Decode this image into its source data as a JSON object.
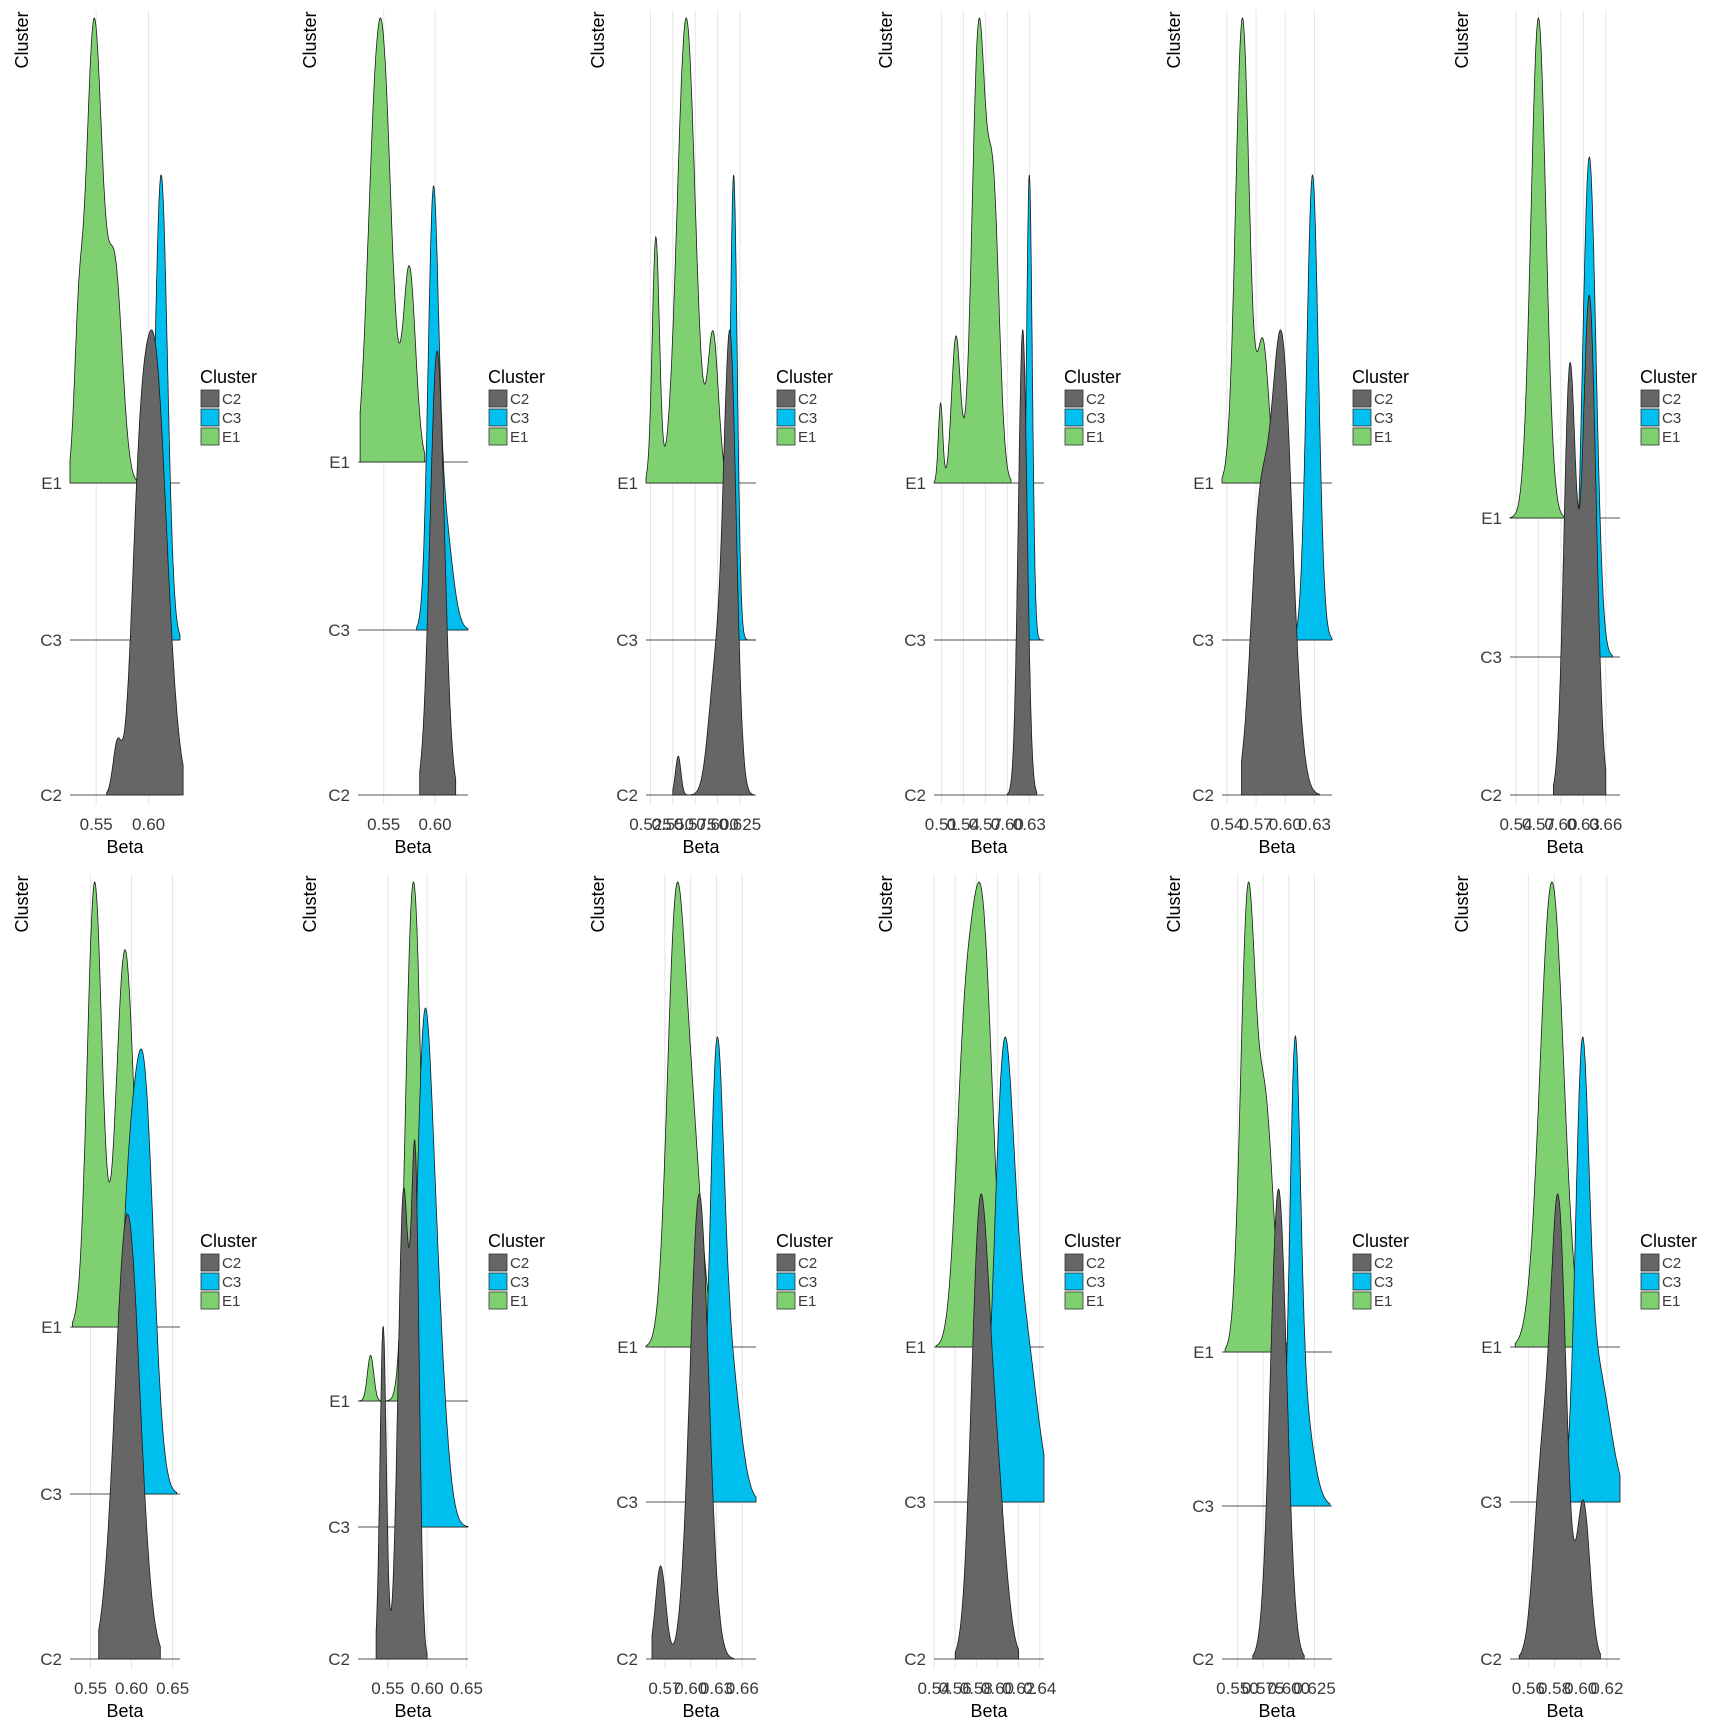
{
  "colors": {
    "C2": "#666666",
    "C3": "#00bfef",
    "E1": "#7ed071",
    "outline": "#1a1a1a",
    "grid": "#e6e6e6",
    "tick": "#3a3a3a"
  },
  "chart_data": [
    {
      "type": "ridgeline",
      "xlabel": "Beta",
      "ylabel": "Cluster",
      "xticks": [
        "0.55",
        "0.60"
      ],
      "xtick_values": [
        0.55,
        0.6
      ],
      "xlim": [
        0.525,
        0.63
      ],
      "categories": [
        "C2",
        "C3",
        "E1"
      ],
      "legend": {
        "title": "Cluster",
        "entries": [
          "C2",
          "C3",
          "E1"
        ],
        "position": "right"
      },
      "series": [
        {
          "name": "C2",
          "peaks": [
            [
              0.57,
              0.1,
              0.004
            ],
            [
              0.59,
              0.3,
              0.007
            ],
            [
              0.605,
              0.95,
              0.012
            ]
          ],
          "range": [
            0.56,
            0.633
          ]
        },
        {
          "name": "C3",
          "peaks": [
            [
              0.612,
              1.0,
              0.006
            ]
          ],
          "range": [
            0.595,
            0.63
          ]
        },
        {
          "name": "E1",
          "peaks": [
            [
              0.533,
              0.25,
              0.004
            ],
            [
              0.548,
              1.0,
              0.008
            ],
            [
              0.568,
              0.45,
              0.007
            ]
          ],
          "range": [
            0.525,
            0.59
          ]
        }
      ]
    },
    {
      "type": "ridgeline",
      "xlabel": "Beta",
      "ylabel": "Cluster",
      "xticks": [
        "0.55",
        "0.60"
      ],
      "xtick_values": [
        0.55,
        0.6
      ],
      "xlim": [
        0.525,
        0.632
      ],
      "categories": [
        "C2",
        "C3",
        "E1"
      ],
      "legend": {
        "title": "Cluster",
        "entries": [
          "C2",
          "C3",
          "E1"
        ],
        "position": "right"
      },
      "series": [
        {
          "name": "C2",
          "peaks": [
            [
              0.602,
              1.0,
              0.007
            ]
          ],
          "range": [
            0.585,
            0.62
          ]
        },
        {
          "name": "C3",
          "peaks": [
            [
              0.598,
              1.0,
              0.005
            ],
            [
              0.608,
              0.3,
              0.008
            ]
          ],
          "range": [
            0.582,
            0.632
          ]
        },
        {
          "name": "E1",
          "peaks": [
            [
              0.548,
              1.0,
              0.009
            ],
            [
              0.575,
              0.45,
              0.006
            ],
            [
              0.537,
              0.2,
              0.006
            ]
          ],
          "range": [
            0.527,
            0.59
          ]
        }
      ]
    },
    {
      "type": "ridgeline",
      "xlabel": "Beta",
      "ylabel": "Cluster",
      "xticks": [
        "0.525",
        "0.550",
        "0.575",
        "0.600",
        "0.625"
      ],
      "xtick_values": [
        0.525,
        0.55,
        0.575,
        0.6,
        0.625
      ],
      "xlim": [
        0.52,
        0.643
      ],
      "categories": [
        "C2",
        "C3",
        "E1"
      ],
      "legend": {
        "title": "Cluster",
        "entries": [
          "C2",
          "C3",
          "E1"
        ],
        "position": "right"
      },
      "series": [
        {
          "name": "C2",
          "peaks": [
            [
              0.556,
              0.08,
              0.003
            ],
            [
              0.598,
              0.25,
              0.008
            ],
            [
              0.614,
              0.92,
              0.007
            ]
          ],
          "range": [
            0.55,
            0.64
          ]
        },
        {
          "name": "C3",
          "peaks": [
            [
              0.618,
              1.0,
              0.004
            ]
          ],
          "range": [
            0.6,
            0.643
          ]
        },
        {
          "name": "E1",
          "peaks": [
            [
              0.531,
              0.5,
              0.004
            ],
            [
              0.565,
              0.95,
              0.01
            ],
            [
              0.595,
              0.3,
              0.006
            ]
          ],
          "range": [
            0.52,
            0.622
          ]
        }
      ]
    },
    {
      "type": "ridgeline",
      "xlabel": "Beta",
      "ylabel": "Cluster",
      "xticks": [
        "0.51",
        "0.54",
        "0.57",
        "0.60",
        "0.63"
      ],
      "xtick_values": [
        0.51,
        0.54,
        0.57,
        0.6,
        0.63
      ],
      "xlim": [
        0.5,
        0.65
      ],
      "categories": [
        "C2",
        "C3",
        "E1"
      ],
      "legend": {
        "title": "Cluster",
        "entries": [
          "C2",
          "C3",
          "E1"
        ],
        "position": "right"
      },
      "series": [
        {
          "name": "C2",
          "peaks": [
            [
              0.621,
              1.0,
              0.006
            ]
          ],
          "range": [
            0.6,
            0.64
          ]
        },
        {
          "name": "C3",
          "peaks": [
            [
              0.63,
              1.0,
              0.004
            ]
          ],
          "range": [
            0.612,
            0.65
          ]
        },
        {
          "name": "E1",
          "peaks": [
            [
              0.509,
              0.12,
              0.003
            ],
            [
              0.53,
              0.22,
              0.006
            ],
            [
              0.561,
              0.68,
              0.009
            ],
            [
              0.581,
              0.42,
              0.008
            ]
          ],
          "range": [
            0.5,
            0.605
          ]
        }
      ]
    },
    {
      "type": "ridgeline",
      "xlabel": "Beta",
      "ylabel": "Cluster",
      "xticks": [
        "0.54",
        "0.57",
        "0.60",
        "0.63"
      ],
      "xtick_values": [
        0.54,
        0.57,
        0.6,
        0.63
      ],
      "xlim": [
        0.535,
        0.648
      ],
      "categories": [
        "C2",
        "C3",
        "E1"
      ],
      "legend": {
        "title": "Cluster",
        "entries": [
          "C2",
          "C3",
          "E1"
        ],
        "position": "right"
      },
      "series": [
        {
          "name": "C2",
          "peaks": [
            [
              0.573,
              0.45,
              0.009
            ],
            [
              0.596,
              0.82,
              0.011
            ]
          ],
          "range": [
            0.555,
            0.635
          ]
        },
        {
          "name": "C3",
          "peaks": [
            [
              0.628,
              1.0,
              0.006
            ]
          ],
          "range": [
            0.61,
            0.648
          ]
        },
        {
          "name": "E1",
          "peaks": [
            [
              0.556,
              1.0,
              0.007
            ],
            [
              0.577,
              0.3,
              0.006
            ]
          ],
          "range": [
            0.535,
            0.598
          ]
        }
      ]
    },
    {
      "type": "ridgeline",
      "xlabel": "Beta",
      "ylabel": "Cluster",
      "xticks": [
        "0.54",
        "0.57",
        "0.60",
        "0.63",
        "0.66"
      ],
      "xtick_values": [
        0.54,
        0.57,
        0.6,
        0.63,
        0.66
      ],
      "xlim": [
        0.532,
        0.679
      ],
      "categories": [
        "C2",
        "C3",
        "E1"
      ],
      "legend": {
        "title": "Cluster",
        "entries": [
          "C2",
          "C3",
          "E1"
        ],
        "position": "right"
      },
      "series": [
        {
          "name": "C2",
          "peaks": [
            [
              0.612,
              0.75,
              0.008
            ],
            [
              0.638,
              0.88,
              0.009
            ]
          ],
          "range": [
            0.59,
            0.66
          ]
        },
        {
          "name": "C3",
          "peaks": [
            [
              0.638,
              1.0,
              0.009
            ]
          ],
          "range": [
            0.61,
            0.669
          ]
        },
        {
          "name": "E1",
          "peaks": [
            [
              0.57,
              1.0,
              0.01
            ]
          ],
          "range": [
            0.532,
            0.61
          ]
        }
      ]
    },
    {
      "type": "ridgeline",
      "xlabel": "Beta",
      "ylabel": "Cluster",
      "xticks": [
        "0.55",
        "0.60",
        "0.65"
      ],
      "xtick_values": [
        0.55,
        0.6,
        0.65
      ],
      "xlim": [
        0.525,
        0.659
      ],
      "categories": [
        "C2",
        "C3",
        "E1"
      ],
      "legend": {
        "title": "Cluster",
        "entries": [
          "C2",
          "C3",
          "E1"
        ],
        "position": "right"
      },
      "series": [
        {
          "name": "C2",
          "peaks": [
            [
              0.595,
              1.0,
              0.015
            ]
          ],
          "range": [
            0.56,
            0.635
          ]
        },
        {
          "name": "C3",
          "peaks": [
            [
              0.615,
              1.0,
              0.012
            ],
            [
              0.595,
              0.55,
              0.01
            ]
          ],
          "range": [
            0.58,
            0.655
          ]
        },
        {
          "name": "E1",
          "peaks": [
            [
              0.555,
              1.0,
              0.009
            ],
            [
              0.592,
              0.85,
              0.011
            ]
          ],
          "range": [
            0.528,
            0.627
          ]
        }
      ]
    },
    {
      "type": "ridgeline",
      "xlabel": "Beta",
      "ylabel": "Cluster",
      "xticks": [
        "0.55",
        "0.60",
        "0.65"
      ],
      "xtick_values": [
        0.55,
        0.6,
        0.65
      ],
      "xlim": [
        0.512,
        0.652
      ],
      "categories": [
        "C2",
        "C3",
        "E1"
      ],
      "legend": {
        "title": "Cluster",
        "entries": [
          "C2",
          "C3",
          "E1"
        ],
        "position": "right"
      },
      "series": [
        {
          "name": "C2",
          "peaks": [
            [
              0.544,
              0.5,
              0.004
            ],
            [
              0.57,
              0.7,
              0.007
            ],
            [
              0.585,
              0.7,
              0.005
            ]
          ],
          "range": [
            0.535,
            0.6
          ]
        },
        {
          "name": "C3",
          "peaks": [
            [
              0.595,
              1.0,
              0.01
            ],
            [
              0.61,
              0.55,
              0.012
            ]
          ],
          "range": [
            0.575,
            0.652
          ]
        },
        {
          "name": "E1",
          "peaks": [
            [
              0.528,
              0.1,
              0.004
            ],
            [
              0.58,
              1.0,
              0.008
            ],
            [
              0.59,
              0.4,
              0.006
            ]
          ],
          "range": [
            0.512,
            0.6
          ]
        }
      ]
    },
    {
      "type": "ridgeline",
      "xlabel": "Beta",
      "ylabel": "Cluster",
      "xticks": [
        "0.57",
        "0.60",
        "0.63",
        "0.66"
      ],
      "xtick_values": [
        0.57,
        0.6,
        0.63,
        0.66
      ],
      "xlim": [
        0.548,
        0.676
      ],
      "categories": [
        "C2",
        "C3",
        "E1"
      ],
      "legend": {
        "title": "Cluster",
        "entries": [
          "C2",
          "C3",
          "E1"
        ],
        "position": "right"
      },
      "series": [
        {
          "name": "C2",
          "peaks": [
            [
              0.565,
              0.2,
              0.006
            ],
            [
              0.61,
              1.0,
              0.011
            ]
          ],
          "range": [
            0.555,
            0.65
          ]
        },
        {
          "name": "C3",
          "peaks": [
            [
              0.63,
              1.0,
              0.008
            ],
            [
              0.645,
              0.35,
              0.012
            ]
          ],
          "range": [
            0.6,
            0.676
          ]
        },
        {
          "name": "E1",
          "peaks": [
            [
              0.582,
              0.95,
              0.01
            ],
            [
              0.6,
              0.55,
              0.012
            ]
          ],
          "range": [
            0.548,
            0.63
          ]
        }
      ]
    },
    {
      "type": "ridgeline",
      "xlabel": "Beta",
      "ylabel": "Cluster",
      "xticks": [
        "0.54",
        "0.56",
        "0.58",
        "0.60",
        "0.62",
        "0.64"
      ],
      "xtick_values": [
        0.54,
        0.56,
        0.58,
        0.6,
        0.62,
        0.64
      ],
      "xlim": [
        0.54,
        0.644
      ],
      "categories": [
        "C2",
        "C3",
        "E1"
      ],
      "legend": {
        "title": "Cluster",
        "entries": [
          "C2",
          "C3",
          "E1"
        ],
        "position": "right"
      },
      "series": [
        {
          "name": "C2",
          "peaks": [
            [
              0.583,
              1.0,
              0.008
            ],
            [
              0.598,
              0.45,
              0.009
            ]
          ],
          "range": [
            0.56,
            0.62
          ]
        },
        {
          "name": "C3",
          "peaks": [
            [
              0.606,
              1.0,
              0.009
            ],
            [
              0.625,
              0.4,
              0.012
            ]
          ],
          "range": [
            0.58,
            0.644
          ]
        },
        {
          "name": "E1",
          "peaks": [
            [
              0.568,
              0.55,
              0.008
            ],
            [
              0.585,
              1.0,
              0.01
            ]
          ],
          "range": [
            0.542,
            0.625
          ]
        }
      ]
    },
    {
      "type": "ridgeline",
      "xlabel": "Beta",
      "ylabel": "Cluster",
      "xticks": [
        "0.550",
        "0.575",
        "0.600",
        "0.625"
      ],
      "xtick_values": [
        0.55,
        0.575,
        0.6,
        0.625
      ],
      "xlim": [
        0.535,
        0.642
      ],
      "categories": [
        "C2",
        "C3",
        "E1"
      ],
      "legend": {
        "title": "Cluster",
        "entries": [
          "C2",
          "C3",
          "E1"
        ],
        "position": "right"
      },
      "series": [
        {
          "name": "C2",
          "peaks": [
            [
              0.59,
              1.0,
              0.008
            ]
          ],
          "range": [
            0.565,
            0.615
          ]
        },
        {
          "name": "C3",
          "peaks": [
            [
              0.606,
              1.0,
              0.005
            ],
            [
              0.612,
              0.3,
              0.01
            ]
          ],
          "range": [
            0.585,
            0.64
          ]
        },
        {
          "name": "E1",
          "peaks": [
            [
              0.56,
              1.0,
              0.007
            ],
            [
              0.577,
              0.55,
              0.008
            ]
          ],
          "range": [
            0.538,
            0.6
          ]
        }
      ]
    },
    {
      "type": "ridgeline",
      "xlabel": "Beta",
      "ylabel": "Cluster",
      "xticks": [
        "0.56",
        "0.58",
        "0.60",
        "0.62"
      ],
      "xtick_values": [
        0.56,
        0.58,
        0.6,
        0.62
      ],
      "xlim": [
        0.546,
        0.63
      ],
      "categories": [
        "C2",
        "C3",
        "E1"
      ],
      "legend": {
        "title": "Cluster",
        "entries": [
          "C2",
          "C3",
          "E1"
        ],
        "position": "right"
      },
      "series": [
        {
          "name": "C2",
          "peaks": [
            [
              0.57,
              0.4,
              0.006
            ],
            [
              0.583,
              1.0,
              0.006
            ],
            [
              0.602,
              0.35,
              0.005
            ]
          ],
          "range": [
            0.553,
            0.615
          ]
        },
        {
          "name": "C3",
          "peaks": [
            [
              0.601,
              1.0,
              0.005
            ],
            [
              0.612,
              0.35,
              0.01
            ]
          ],
          "range": [
            0.585,
            0.63
          ]
        },
        {
          "name": "E1",
          "peaks": [
            [
              0.578,
              1.0,
              0.009
            ]
          ],
          "range": [
            0.55,
            0.605
          ]
        }
      ]
    }
  ]
}
